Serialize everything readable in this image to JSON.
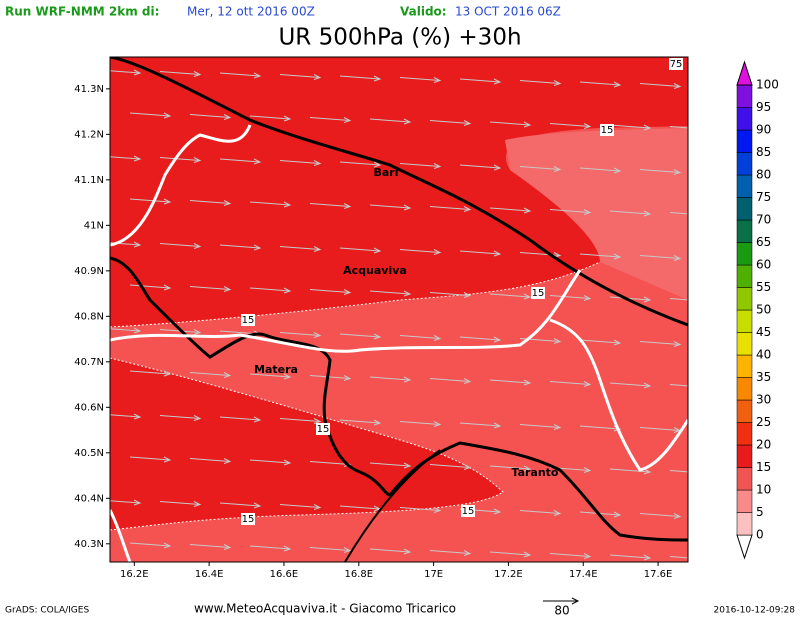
{
  "header": {
    "run": "Run WRF-NMM 2km di:",
    "run_date": "Mer, 12 ott 2016 00Z",
    "valid": "Valido:",
    "valid_date": "13 OCT 2016 06Z",
    "title": "UR 500hPa (%) +30h"
  },
  "map": {
    "lon_range": [
      16.135,
      17.68
    ],
    "lat_range": [
      40.26,
      41.37
    ],
    "lon_ticks": [
      {
        "value": 16.2,
        "label": "16.2E"
      },
      {
        "value": 16.4,
        "label": "16.4E"
      },
      {
        "value": 16.6,
        "label": "16.6E"
      },
      {
        "value": 16.8,
        "label": "16.8E"
      },
      {
        "value": 17,
        "label": "17E"
      },
      {
        "value": 17.2,
        "label": "17.2E"
      },
      {
        "value": 17.4,
        "label": "17.4E"
      },
      {
        "value": 17.6,
        "label": "17.6E"
      }
    ],
    "lat_ticks": [
      {
        "value": 41.3,
        "label": "41.3N"
      },
      {
        "value": 41.2,
        "label": "41.2N"
      },
      {
        "value": 41.1,
        "label": "41.1N"
      },
      {
        "value": 41,
        "label": "41N"
      },
      {
        "value": 40.9,
        "label": "40.9N"
      },
      {
        "value": 40.8,
        "label": "40.8N"
      },
      {
        "value": 40.7,
        "label": "40.7N"
      },
      {
        "value": 40.6,
        "label": "40.6N"
      },
      {
        "value": 40.5,
        "label": "40.5N"
      },
      {
        "value": 40.4,
        "label": "40.4N"
      },
      {
        "value": 40.3,
        "label": "40.3N"
      }
    ],
    "cities": [
      "Bari",
      "Acquaviva",
      "Matera",
      "Taranto"
    ],
    "contour_labels": [
      "75",
      "15",
      "15",
      "15",
      "15",
      "15",
      "15"
    ]
  },
  "legend": {
    "levels": [
      0,
      5,
      10,
      15,
      20,
      25,
      30,
      35,
      40,
      45,
      50,
      55,
      60,
      65,
      70,
      75,
      80,
      85,
      90,
      95,
      100
    ],
    "colors": [
      "#ffffff",
      "#fcc0c0",
      "#f88a8a",
      "#f25454",
      "#e81c1c",
      "#f03010",
      "#f06010",
      "#f88800",
      "#fcb400",
      "#e8e000",
      "#c8dc00",
      "#90c800",
      "#50b000",
      "#1a9a10",
      "#0a7048",
      "#006070",
      "#0060b0",
      "#0040d8",
      "#0018f0",
      "#4010e8",
      "#8010e0",
      "#e010e0"
    ]
  },
  "footer": {
    "grads": "GrADS: COLA/IGES",
    "site": "www.MeteoAcquaviva.it - Giacomo Tricarico",
    "scale": "80",
    "timestamp": "2016-10-12-09:28"
  }
}
